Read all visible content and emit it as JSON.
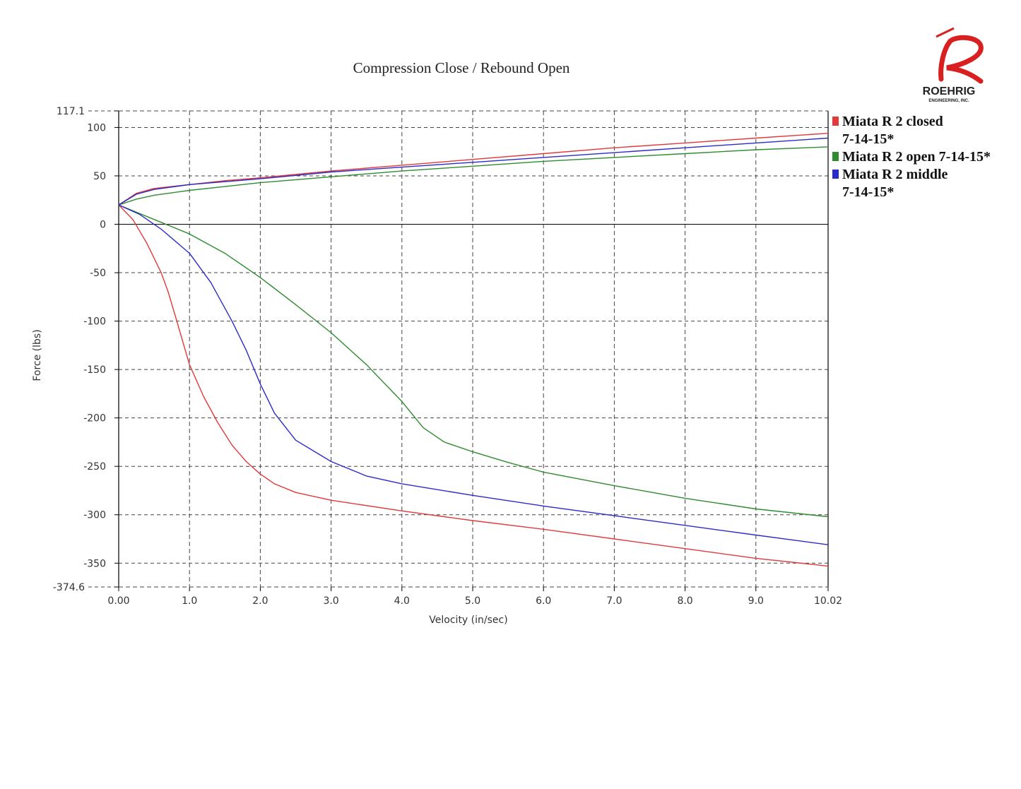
{
  "colors": {
    "red": "#e03a3a",
    "green": "#2e8b2e",
    "blue": "#2b2bc8",
    "logo_red": "#d82020"
  },
  "logo": {
    "name": "ROEHRIG",
    "sub": "ENGINEERING, INC."
  },
  "chart_data": {
    "type": "line",
    "title": "Compression Close / Rebound Open",
    "xlabel": "Velocity (in/sec)",
    "ylabel": "Force (lbs)",
    "xlim": [
      0.0,
      10.02
    ],
    "ylim": [
      -374.6,
      117.1
    ],
    "x_ticks": [
      "0.00",
      "1.0",
      "2.0",
      "3.0",
      "4.0",
      "5.0",
      "6.0",
      "7.0",
      "8.0",
      "9.0",
      "10.02"
    ],
    "x_tick_values": [
      0,
      1,
      2,
      3,
      4,
      5,
      6,
      7,
      8,
      9,
      10.02
    ],
    "y_ticks": [
      "117.1",
      "100",
      "50",
      "0",
      "-50",
      "-100",
      "-150",
      "-200",
      "-250",
      "-300",
      "-350",
      "-374.6"
    ],
    "y_tick_values": [
      117.1,
      100,
      50,
      0,
      -50,
      -100,
      -150,
      -200,
      -250,
      -300,
      -350,
      -374.6
    ],
    "grid": true,
    "legend_position": "right",
    "series": [
      {
        "name": "Miata R 2 closed 7-14-15*",
        "legend_lines": [
          "Miata R 2 closed",
          "7-14-15*"
        ],
        "color_key": "red",
        "compression": {
          "x": [
            0,
            0.25,
            0.5,
            1,
            1.5,
            2,
            3,
            4,
            5,
            6,
            7,
            8,
            9,
            10.02
          ],
          "y": [
            20,
            32,
            37,
            41,
            45,
            48,
            55,
            61,
            67,
            73,
            79,
            84,
            89,
            94
          ]
        },
        "rebound": {
          "x": [
            0,
            0.2,
            0.4,
            0.6,
            0.7,
            0.8,
            0.9,
            1.0,
            1.2,
            1.4,
            1.6,
            1.8,
            2.0,
            2.2,
            2.5,
            3,
            4,
            5,
            6,
            7,
            8,
            9,
            10.02
          ],
          "y": [
            20,
            5,
            -20,
            -50,
            -70,
            -95,
            -120,
            -145,
            -178,
            -205,
            -228,
            -245,
            -258,
            -268,
            -277,
            -285,
            -296,
            -306,
            -315,
            -325,
            -335,
            -345,
            -353
          ]
        }
      },
      {
        "name": "Miata R 2 open 7-14-15*",
        "legend_lines": [
          "Miata R 2 open 7-14-15*"
        ],
        "color_key": "green",
        "compression": {
          "x": [
            0,
            0.25,
            0.5,
            1,
            1.5,
            2,
            3,
            4,
            5,
            6,
            7,
            8,
            9,
            10.02
          ],
          "y": [
            20,
            26,
            30,
            35,
            39,
            43,
            49,
            55,
            60,
            65,
            69,
            73,
            77,
            80
          ]
        },
        "rebound": {
          "x": [
            0,
            0.5,
            1,
            1.5,
            2,
            2.5,
            3,
            3.5,
            4,
            4.3,
            4.6,
            5,
            5.5,
            6,
            7,
            8,
            9,
            10.02
          ],
          "y": [
            20,
            5,
            -10,
            -30,
            -55,
            -83,
            -112,
            -145,
            -183,
            -210,
            -225,
            -235,
            -246,
            -256,
            -270,
            -283,
            -294,
            -302
          ]
        }
      },
      {
        "name": "Miata R 2 middle 7-14-15*",
        "legend_lines": [
          "Miata R 2 middle",
          "7-14-15*"
        ],
        "color_key": "blue",
        "compression": {
          "x": [
            0,
            0.25,
            0.5,
            1,
            1.5,
            2,
            3,
            4,
            5,
            6,
            7,
            8,
            9,
            10.02
          ],
          "y": [
            20,
            31,
            36,
            41,
            44,
            47,
            54,
            59,
            64,
            69,
            74,
            79,
            84,
            89
          ]
        },
        "rebound": {
          "x": [
            0,
            0.3,
            0.6,
            1.0,
            1.3,
            1.6,
            1.8,
            2.0,
            2.2,
            2.5,
            3.0,
            3.5,
            4,
            5,
            6,
            7,
            8,
            9,
            10.02
          ],
          "y": [
            20,
            10,
            -5,
            -30,
            -60,
            -100,
            -130,
            -165,
            -195,
            -223,
            -245,
            -260,
            -268,
            -280,
            -291,
            -301,
            -311,
            -321,
            -331
          ]
        }
      }
    ]
  }
}
